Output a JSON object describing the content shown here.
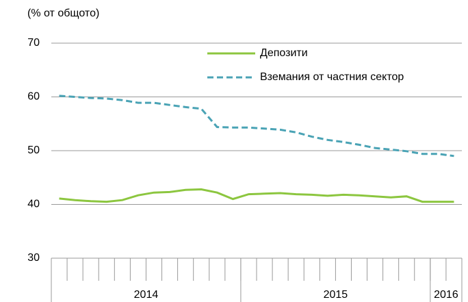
{
  "chart_data": {
    "type": "line",
    "y_unit_label": "(% от общото)",
    "categories": [
      null,
      null,
      null,
      null,
      null,
      null,
      null,
      null,
      null,
      null,
      null,
      null,
      null,
      null,
      null,
      null,
      null,
      null,
      null,
      null,
      null,
      null,
      null,
      null,
      null,
      null
    ],
    "groups": [
      {
        "label": "2014",
        "span": 12
      },
      {
        "label": "2015",
        "span": 12
      },
      {
        "label": "2016",
        "span": 2
      }
    ],
    "series": [
      {
        "name": "Депозити",
        "color": "#8cc63f",
        "dash": false,
        "values": [
          41.1,
          40.8,
          40.6,
          40.5,
          40.8,
          41.7,
          42.2,
          42.3,
          42.7,
          42.8,
          42.2,
          41.0,
          41.9,
          42.0,
          42.1,
          41.9,
          41.8,
          41.6,
          41.8,
          41.7,
          41.5,
          41.3,
          41.5,
          40.5,
          40.5,
          40.5
        ]
      },
      {
        "name": "Вземания от частния сектор",
        "color": "#4aa3b5",
        "dash": true,
        "values": [
          60.2,
          60.0,
          59.8,
          59.7,
          59.4,
          58.9,
          58.9,
          58.5,
          58.1,
          57.8,
          54.4,
          54.3,
          54.3,
          54.1,
          53.9,
          53.4,
          52.6,
          52.0,
          51.6,
          51.1,
          50.5,
          50.2,
          49.9,
          49.4,
          49.4,
          49.0
        ]
      }
    ],
    "ylim": [
      30,
      70
    ],
    "yticks": [
      30,
      40,
      50,
      60,
      70
    ],
    "grid": true,
    "legend": "top"
  }
}
